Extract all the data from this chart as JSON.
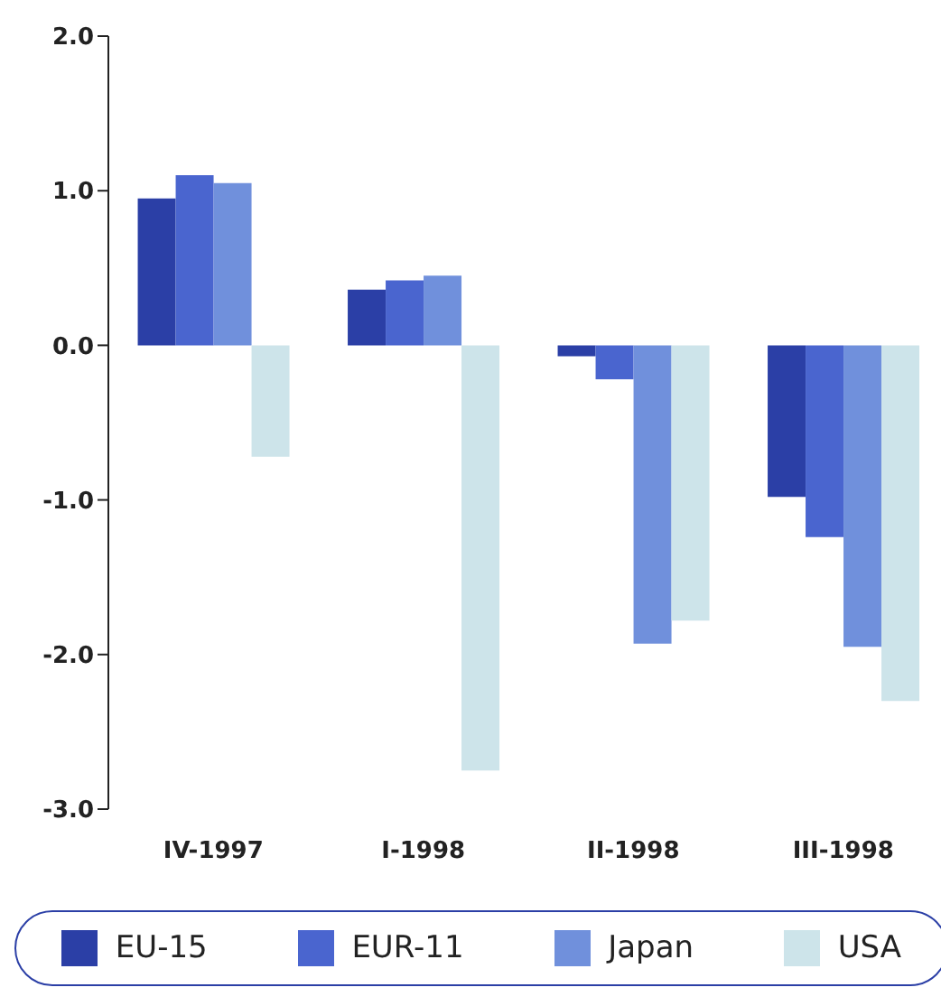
{
  "chart_data": {
    "type": "bar",
    "categories": [
      "IV-1997",
      "I-1998",
      "II-1998",
      "III-1998"
    ],
    "series": [
      {
        "name": "EU-15",
        "color": "#2b3fa6",
        "values": [
          0.95,
          0.36,
          -0.07,
          -0.98
        ]
      },
      {
        "name": "EUR-11",
        "color": "#4a65cf",
        "values": [
          1.1,
          0.42,
          -0.22,
          -1.24
        ]
      },
      {
        "name": "Japan",
        "color": "#7090dc",
        "values": [
          1.05,
          0.45,
          -1.93,
          -1.95
        ]
      },
      {
        "name": "USA",
        "color": "#cde4ea",
        "values": [
          -0.72,
          -2.75,
          -1.78,
          -2.3
        ]
      }
    ],
    "ylim": [
      -3,
      2
    ],
    "yticks": [
      {
        "value": -3,
        "label": "-3.0"
      },
      {
        "value": -2,
        "label": "-2.0"
      },
      {
        "value": -1,
        "label": "-1.0"
      },
      {
        "value": 0,
        "label": "0.0"
      },
      {
        "value": 1,
        "label": "1.0"
      },
      {
        "value": 2,
        "label": "2.0"
      }
    ],
    "grid": false,
    "legend": "bottom"
  }
}
